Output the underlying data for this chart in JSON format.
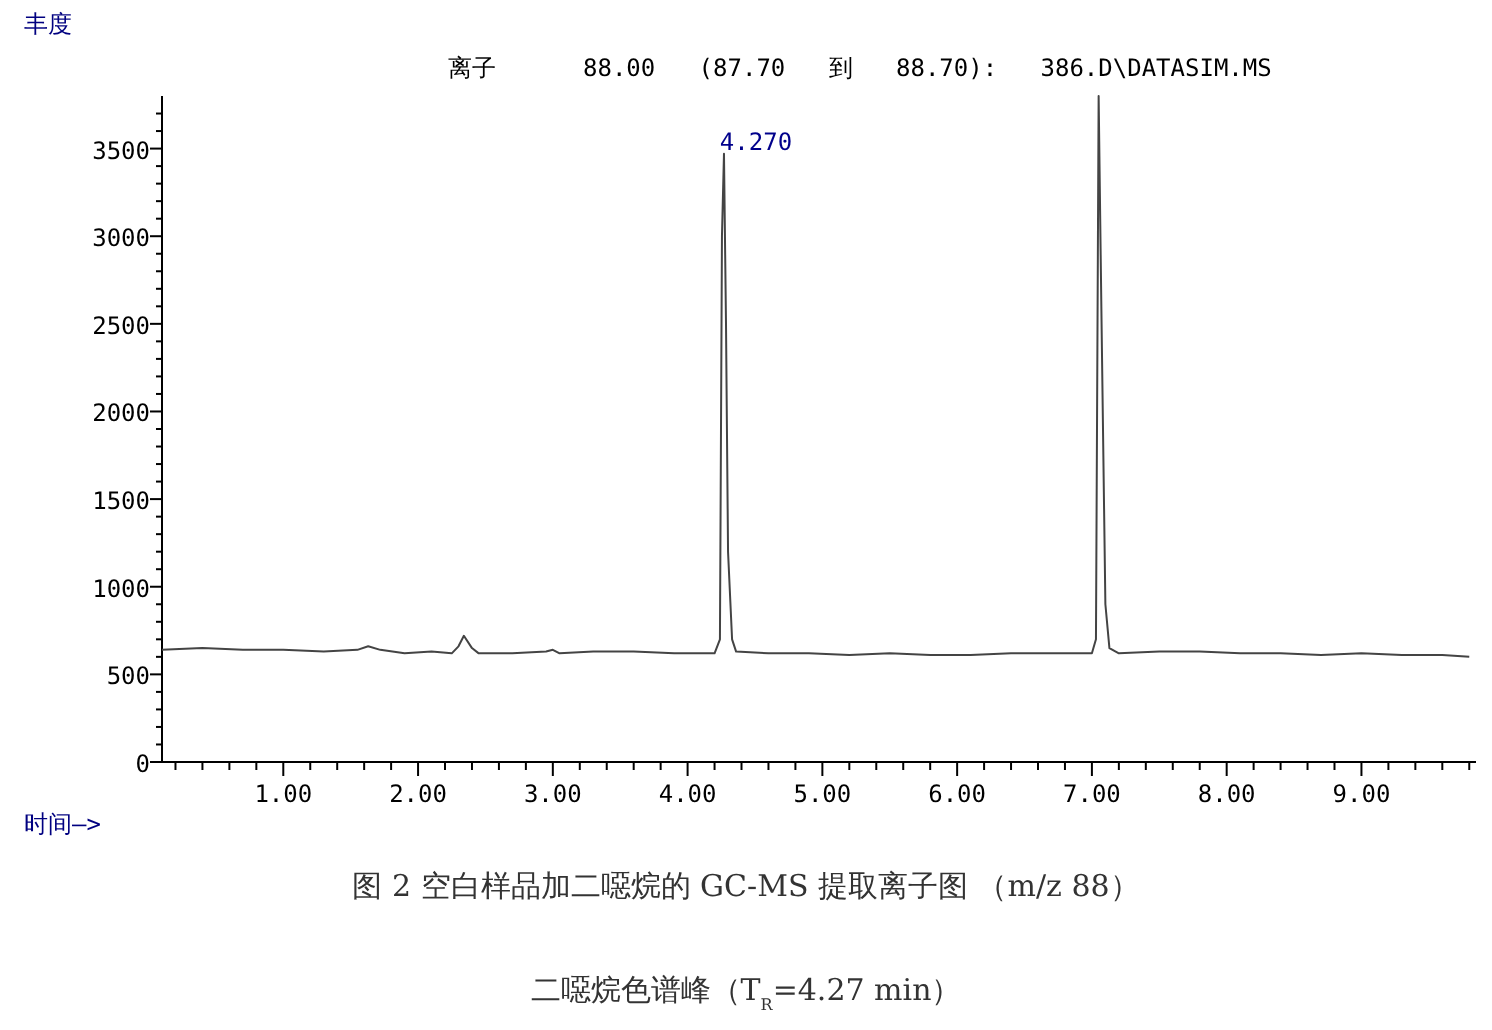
{
  "chart_data": {
    "type": "line",
    "title": "离子      88.00   (87.70   到   88.70):   386.D\\DATASIM.MS",
    "xlabel": "时间—>",
    "ylabel": "丰度",
    "annotations": [
      {
        "text": "4.270",
        "x": 4.27,
        "y": 3470
      },
      "图 2 空白样品加二噁烷的 GC-MS 提取离子图 （m/z 88）",
      "二噁烷色谱峰（T$_{R}$=4.27 min）"
    ],
    "xlim": [
      0.1,
      9.85
    ],
    "ylim": [
      0,
      3800
    ],
    "xticks": [
      {
        "value": 0.2,
        "label": null
      },
      {
        "value": 0.4,
        "label": null
      },
      {
        "value": 0.6,
        "label": null
      },
      {
        "value": 0.8,
        "label": null
      },
      {
        "value": 1,
        "label": "1.00"
      },
      {
        "value": 1.2,
        "label": null
      },
      {
        "value": 1.4,
        "label": null
      },
      {
        "value": 1.6,
        "label": null
      },
      {
        "value": 1.8,
        "label": null
      },
      {
        "value": 2,
        "label": "2.00"
      },
      {
        "value": 2.2,
        "label": null
      },
      {
        "value": 2.4,
        "label": null
      },
      {
        "value": 2.6,
        "label": null
      },
      {
        "value": 2.8,
        "label": null
      },
      {
        "value": 3,
        "label": "3.00"
      },
      {
        "value": 3.2,
        "label": null
      },
      {
        "value": 3.4,
        "label": null
      },
      {
        "value": 3.6,
        "label": null
      },
      {
        "value": 3.8,
        "label": null
      },
      {
        "value": 4,
        "label": "4.00"
      },
      {
        "value": 4.2,
        "label": null
      },
      {
        "value": 4.4,
        "label": null
      },
      {
        "value": 4.6,
        "label": null
      },
      {
        "value": 4.8,
        "label": null
      },
      {
        "value": 5,
        "label": "5.00"
      },
      {
        "value": 5.2,
        "label": null
      },
      {
        "value": 5.4,
        "label": null
      },
      {
        "value": 5.6,
        "label": null
      },
      {
        "value": 5.8,
        "label": null
      },
      {
        "value": 6,
        "label": "6.00"
      },
      {
        "value": 6.2,
        "label": null
      },
      {
        "value": 6.4,
        "label": null
      },
      {
        "value": 6.6,
        "label": null
      },
      {
        "value": 6.8,
        "label": null
      },
      {
        "value": 7,
        "label": "7.00"
      },
      {
        "value": 7.2,
        "label": null
      },
      {
        "value": 7.4,
        "label": null
      },
      {
        "value": 7.6,
        "label": null
      },
      {
        "value": 7.8,
        "label": null
      },
      {
        "value": 8,
        "label": "8.00"
      },
      {
        "value": 8.2,
        "label": null
      },
      {
        "value": 8.4,
        "label": null
      },
      {
        "value": 8.6,
        "label": null
      },
      {
        "value": 8.8,
        "label": null
      },
      {
        "value": 9,
        "label": "9.00"
      },
      {
        "value": 9.2,
        "label": null
      },
      {
        "value": 9.4,
        "label": null
      },
      {
        "value": 9.6,
        "label": null
      },
      {
        "value": 9.8,
        "label": null
      }
    ],
    "yticks": [
      0,
      {
        "value": 100,
        "label": null
      },
      {
        "value": 200,
        "label": null
      },
      {
        "value": 300,
        "label": null
      },
      {
        "value": 400,
        "label": null
      },
      500,
      {
        "value": 600,
        "label": null
      },
      {
        "value": 700,
        "label": null
      },
      {
        "value": 800,
        "label": null
      },
      {
        "value": 900,
        "label": null
      },
      1000,
      {
        "value": 1100,
        "label": null
      },
      {
        "value": 1200,
        "label": null
      },
      {
        "value": 1300,
        "label": null
      },
      {
        "value": 1400,
        "label": null
      },
      1500,
      {
        "value": 1600,
        "label": null
      },
      {
        "value": 1700,
        "label": null
      },
      {
        "value": 1800,
        "label": null
      },
      {
        "value": 1900,
        "label": null
      },
      2000,
      {
        "value": 2100,
        "label": null
      },
      {
        "value": 2200,
        "label": null
      },
      {
        "value": 2300,
        "label": null
      },
      {
        "value": 2400,
        "label": null
      },
      2500,
      {
        "value": 2600,
        "label": null
      },
      {
        "value": 2700,
        "label": null
      },
      {
        "value": 2800,
        "label": null
      },
      {
        "value": 2900,
        "label": null
      },
      3000,
      {
        "value": 3100,
        "label": null
      },
      {
        "value": 3200,
        "label": null
      },
      {
        "value": 3300,
        "label": null
      },
      {
        "value": 3400,
        "label": null
      },
      3500,
      {
        "value": 3600,
        "label": null
      },
      {
        "value": 3700,
        "label": null
      }
    ],
    "grid": false,
    "series": [
      {
        "color": "#444444",
        "x": [
          0.1,
          0.4,
          0.7,
          1.0,
          1.3,
          1.55,
          1.63,
          1.72,
          1.9,
          2.1,
          2.25,
          2.3,
          2.34,
          2.4,
          2.45,
          2.7,
          2.95,
          3.0,
          3.05,
          3.3,
          3.6,
          3.9,
          4.2,
          4.24,
          4.255,
          4.27,
          4.285,
          4.3,
          4.33,
          4.36,
          4.6,
          4.9,
          5.2,
          5.5,
          5.8,
          6.1,
          6.4,
          6.7,
          7.0,
          7.03,
          7.05,
          7.07,
          7.1,
          7.13,
          7.2,
          7.5,
          7.8,
          8.1,
          8.4,
          8.7,
          9.0,
          9.3,
          9.6,
          9.8
        ],
        "values": [
          640,
          650,
          640,
          640,
          630,
          640,
          660,
          640,
          620,
          630,
          620,
          660,
          720,
          650,
          620,
          620,
          630,
          640,
          620,
          630,
          630,
          620,
          620,
          700,
          3000,
          3470,
          2500,
          1200,
          700,
          630,
          620,
          620,
          610,
          620,
          610,
          610,
          620,
          620,
          620,
          700,
          3800,
          2600,
          900,
          650,
          620,
          630,
          630,
          620,
          620,
          610,
          620,
          610,
          610,
          600
        ]
      }
    ]
  }
}
